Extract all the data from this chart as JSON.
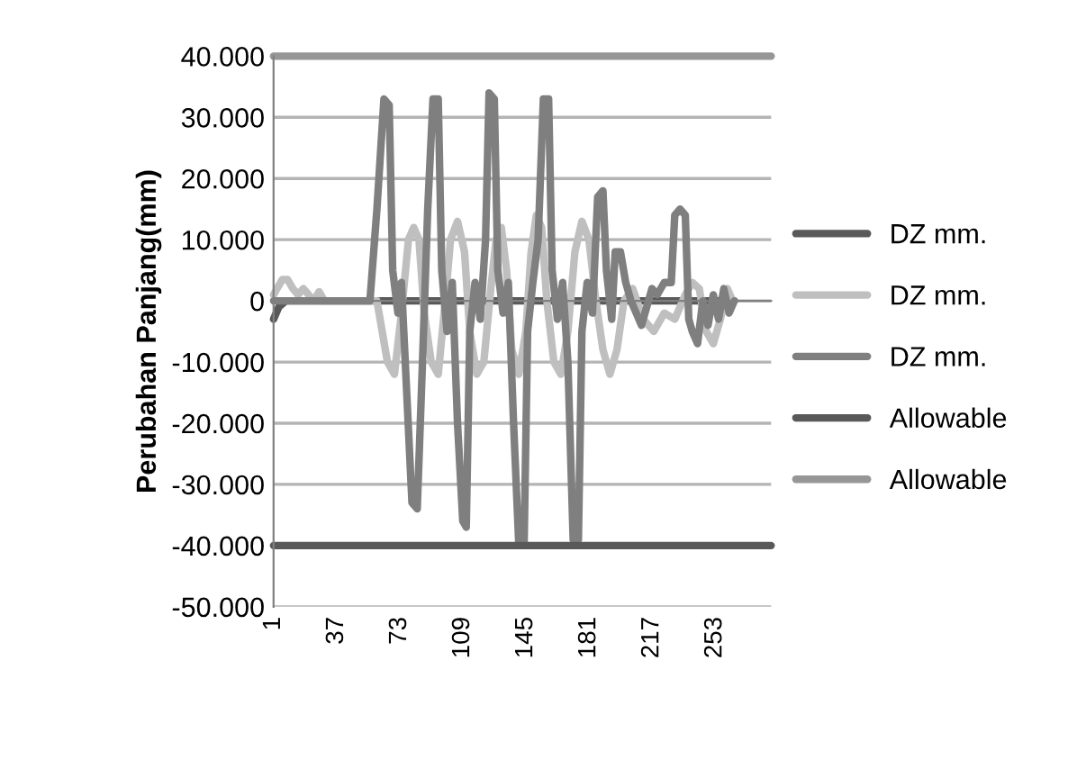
{
  "chart_data": {
    "type": "line",
    "ylabel": "Perubahan Panjang(mm)",
    "xlim": [
      1,
      285
    ],
    "xticks": [
      1,
      37,
      73,
      109,
      145,
      181,
      217,
      253
    ],
    "ylim": [
      -50000,
      40000
    ],
    "yticks": [
      {
        "value": -50000,
        "label": "-50.000"
      },
      {
        "value": -40000,
        "label": "-40.000"
      },
      {
        "value": -30000,
        "label": "-30.000"
      },
      {
        "value": -20000,
        "label": "-20.000"
      },
      {
        "value": -10000,
        "label": "-10.000"
      },
      {
        "value": 0,
        "label": "0"
      },
      {
        "value": 10000,
        "label": "10.000"
      },
      {
        "value": 20000,
        "label": "20.000"
      },
      {
        "value": 30000,
        "label": "30.000"
      },
      {
        "value": 40000,
        "label": "40.000"
      }
    ],
    "grid": "y",
    "legend": "right",
    "marker": "none",
    "line_style": "solid",
    "series": [
      {
        "name": "DZ mm.",
        "color": "#595959",
        "x": [
          1,
          4,
          8,
          264
        ],
        "values": [
          -3000,
          -1000,
          0,
          0
        ]
      },
      {
        "name": "DZ mm.",
        "color": "#bfbfbf",
        "x": [
          1,
          3,
          6,
          9,
          12,
          15,
          18,
          21,
          24,
          27,
          30,
          60,
          63,
          66,
          70,
          74,
          78,
          81,
          84,
          87,
          91,
          95,
          99,
          102,
          106,
          110,
          113,
          117,
          121,
          125,
          128,
          131,
          134,
          137,
          141,
          145,
          148,
          151,
          154,
          157,
          161,
          165,
          169,
          173,
          177,
          181,
          185,
          189,
          193,
          197,
          201,
          206,
          212,
          218,
          224,
          230,
          236,
          240,
          244,
          248,
          252,
          256,
          260,
          263
        ],
        "values": [
          1000,
          2000,
          3500,
          3500,
          2000,
          1000,
          2000,
          1000,
          0,
          1500,
          0,
          0,
          -5000,
          -10000,
          -12000,
          -2000,
          10000,
          12000,
          10000,
          -2000,
          -10000,
          -12000,
          0,
          10000,
          13000,
          8000,
          -5000,
          -12000,
          -10000,
          2000,
          10000,
          12000,
          5000,
          -8000,
          -12000,
          -5000,
          8000,
          14000,
          12000,
          0,
          -10000,
          -12000,
          -5000,
          8000,
          13000,
          10000,
          0,
          -8000,
          -12000,
          -8000,
          0,
          2000,
          -3000,
          -5000,
          -2000,
          -3000,
          1000,
          3000,
          2000,
          -5000,
          -7000,
          -3000,
          2000,
          0
        ]
      },
      {
        "name": "DZ mm.",
        "color": "#7f7f7f",
        "x": [
          1,
          56,
          60,
          64,
          67,
          69,
          72,
          74,
          77,
          80,
          83,
          86,
          89,
          92,
          95,
          97,
          100,
          103,
          106,
          109,
          111,
          113,
          116,
          119,
          122,
          124,
          127,
          129,
          132,
          135,
          138,
          141,
          144,
          146,
          149,
          152,
          155,
          158,
          160,
          163,
          166,
          169,
          172,
          175,
          177,
          180,
          183,
          186,
          189,
          191,
          194,
          196,
          199,
          202,
          205,
          208,
          211,
          214,
          217,
          220,
          224,
          228,
          230,
          233,
          236,
          238,
          240,
          243,
          246,
          249,
          252,
          255,
          258,
          261,
          264
        ],
        "values": [
          0,
          0,
          15000,
          33000,
          32000,
          5000,
          -2000,
          3000,
          -15000,
          -33000,
          -34000,
          -10000,
          15000,
          33000,
          33000,
          5000,
          -5000,
          3000,
          -20000,
          -36000,
          -37000,
          -5000,
          3000,
          -3000,
          10000,
          34000,
          33000,
          5000,
          -2000,
          3000,
          -20000,
          -40000,
          -40000,
          -5000,
          3000,
          10000,
          33000,
          33000,
          5000,
          -3000,
          3000,
          -10000,
          -39000,
          -39000,
          -5000,
          3000,
          -2000,
          17000,
          18000,
          5000,
          -3000,
          8000,
          8000,
          3000,
          0,
          -2000,
          -4000,
          -1000,
          2000,
          1000,
          3000,
          3000,
          14000,
          15000,
          14000,
          -3000,
          -5000,
          -7000,
          0,
          -4000,
          1000,
          -3000,
          2000,
          -2000,
          0
        ]
      },
      {
        "name": "Allowable",
        "color": "#595959",
        "x": [
          1,
          285
        ],
        "values": [
          -40000,
          -40000
        ]
      },
      {
        "name": "Allowable",
        "color": "#969696",
        "x": [
          1,
          285
        ],
        "values": [
          40000,
          40000
        ]
      }
    ]
  }
}
